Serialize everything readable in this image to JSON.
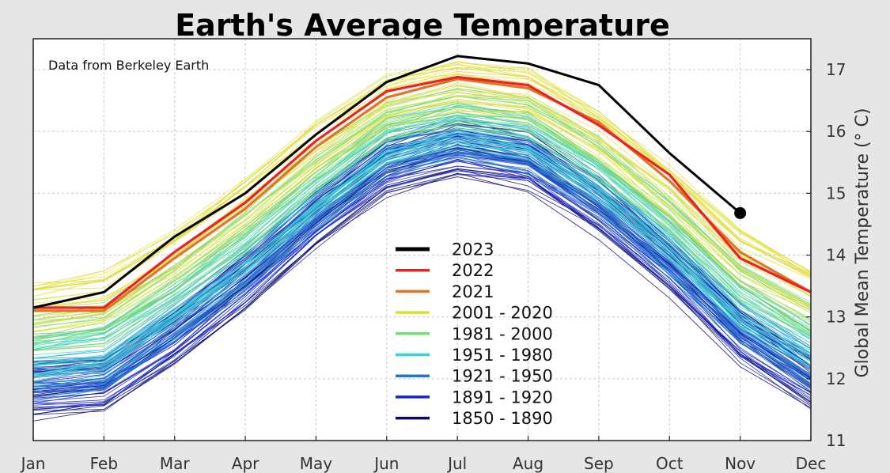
{
  "chart_data": {
    "type": "line",
    "title": "Earth's Average Temperature",
    "annotation": "Data from Berkeley Earth",
    "xlabel": "",
    "ylabel": "Global Mean Temperature (° C)",
    "categories": [
      "Jan",
      "Feb",
      "Mar",
      "Apr",
      "May",
      "Jun",
      "Jul",
      "Aug",
      "Sep",
      "Oct",
      "Nov",
      "Dec"
    ],
    "ylim": [
      11,
      17.5
    ],
    "yticks": [
      11,
      12,
      13,
      14,
      15,
      16,
      17
    ],
    "y_axis_side": "right",
    "grid": true,
    "legend_position": "center-bottom",
    "series": [
      {
        "name": "2023",
        "color": "#000000",
        "values": [
          13.15,
          13.4,
          14.3,
          15.0,
          15.95,
          16.8,
          17.22,
          17.1,
          16.75,
          15.65,
          14.68,
          null
        ],
        "end_marker": true
      },
      {
        "name": "2022",
        "color": "#ee2222",
        "values": [
          13.15,
          13.15,
          14.05,
          14.85,
          15.85,
          16.65,
          16.88,
          16.75,
          16.1,
          15.3,
          13.95,
          13.4
        ]
      },
      {
        "name": "2021",
        "color": "#dd7722",
        "values": [
          13.1,
          13.1,
          13.95,
          14.75,
          15.75,
          16.55,
          16.85,
          16.7,
          16.15,
          15.2,
          14.05,
          13.4
        ]
      }
    ],
    "band_groups": [
      {
        "name": "2001 - 2020",
        "color": "#e0dd33",
        "colors": [
          "#ddd833",
          "#e8e346",
          "#d4dc40",
          "#ece058"
        ],
        "base": [
          13.15,
          13.3,
          14.0,
          14.85,
          15.75,
          16.5,
          16.75,
          16.6,
          15.95,
          15.05,
          14.0,
          13.4
        ],
        "spread": 0.38
      },
      {
        "name": "1981 - 2000",
        "color": "#77dd77",
        "colors": [
          "#88e080",
          "#6fd87f",
          "#a6e36a",
          "#5ecf8a"
        ],
        "base": [
          12.75,
          12.9,
          13.6,
          14.45,
          15.4,
          16.2,
          16.45,
          16.3,
          15.6,
          14.7,
          13.6,
          12.95
        ],
        "spread": 0.35
      },
      {
        "name": "1951 - 1980",
        "color": "#33d3dd",
        "colors": [
          "#35d0d8",
          "#44ccd6",
          "#2ec4cf",
          "#55d6cc"
        ],
        "base": [
          12.35,
          12.5,
          13.25,
          14.05,
          15.0,
          15.85,
          16.15,
          15.95,
          15.25,
          14.3,
          13.2,
          12.55
        ],
        "spread": 0.33
      },
      {
        "name": "1921 - 1950",
        "color": "#2277cc",
        "colors": [
          "#2a80cc",
          "#1e6fc4",
          "#3390d6",
          "#2a9ad8"
        ],
        "base": [
          12.0,
          12.1,
          12.9,
          13.75,
          14.75,
          15.6,
          15.9,
          15.7,
          14.95,
          14.0,
          12.9,
          12.2
        ],
        "spread": 0.32
      },
      {
        "name": "1891 - 1920",
        "color": "#1a22cc",
        "colors": [
          "#1a20c8",
          "#2030d4",
          "#1010b8",
          "#2840d8"
        ],
        "base": [
          11.85,
          11.95,
          12.7,
          13.6,
          14.6,
          15.45,
          15.75,
          15.55,
          14.8,
          13.85,
          12.75,
          12.0
        ],
        "spread": 0.36
      },
      {
        "name": "1850 - 1890",
        "color": "#0a0a66",
        "colors": [
          "#0d0d70",
          "#1a1a88",
          "#101066",
          "#222299"
        ],
        "base": [
          11.8,
          11.9,
          12.65,
          13.55,
          14.55,
          15.4,
          15.7,
          15.5,
          14.75,
          13.8,
          12.7,
          11.95
        ],
        "spread": 0.45
      }
    ],
    "legend": [
      "2023",
      "2022",
      "2021",
      "2001 - 2020",
      "1981 - 2000",
      "1951 - 1980",
      "1921 - 1950",
      "1891 - 1920",
      "1850 - 1890"
    ]
  }
}
